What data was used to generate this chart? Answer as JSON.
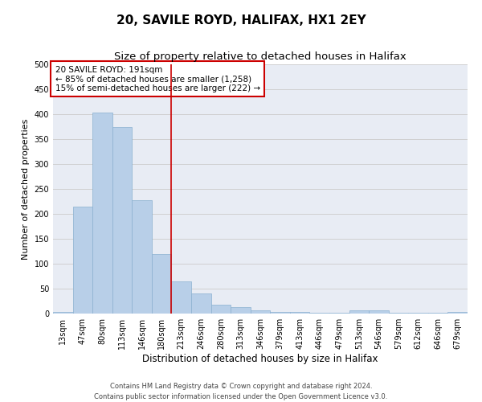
{
  "title": "20, SAVILE ROYD, HALIFAX, HX1 2EY",
  "subtitle": "Size of property relative to detached houses in Halifax",
  "xlabel": "Distribution of detached houses by size in Halifax",
  "ylabel": "Number of detached properties",
  "categories": [
    "13sqm",
    "47sqm",
    "80sqm",
    "113sqm",
    "146sqm",
    "180sqm",
    "213sqm",
    "246sqm",
    "280sqm",
    "313sqm",
    "346sqm",
    "379sqm",
    "413sqm",
    "446sqm",
    "479sqm",
    "513sqm",
    "546sqm",
    "579sqm",
    "612sqm",
    "646sqm",
    "679sqm"
  ],
  "values": [
    3,
    215,
    404,
    374,
    228,
    120,
    65,
    40,
    17,
    13,
    7,
    4,
    4,
    2,
    2,
    7,
    7,
    2,
    1,
    1,
    3
  ],
  "bar_color": "#b8cfe8",
  "bar_edge_color": "#8ab0d0",
  "bar_linewidth": 0.5,
  "vline_x": 5.5,
  "vline_color": "#cc0000",
  "vline_linewidth": 1.2,
  "ylim": [
    0,
    500
  ],
  "yticks": [
    0,
    50,
    100,
    150,
    200,
    250,
    300,
    350,
    400,
    450,
    500
  ],
  "grid_color": "#d0d0d0",
  "bg_color": "#e8ecf4",
  "annotation_text": "20 SAVILE ROYD: 191sqm\n← 85% of detached houses are smaller (1,258)\n15% of semi-detached houses are larger (222) →",
  "annotation_box_color": "#cc0000",
  "footer_line1": "Contains HM Land Registry data © Crown copyright and database right 2024.",
  "footer_line2": "Contains public sector information licensed under the Open Government Licence v3.0.",
  "title_fontsize": 11,
  "subtitle_fontsize": 9.5,
  "xlabel_fontsize": 8.5,
  "ylabel_fontsize": 8,
  "tick_fontsize": 7,
  "annotation_fontsize": 7.5,
  "footer_fontsize": 6
}
